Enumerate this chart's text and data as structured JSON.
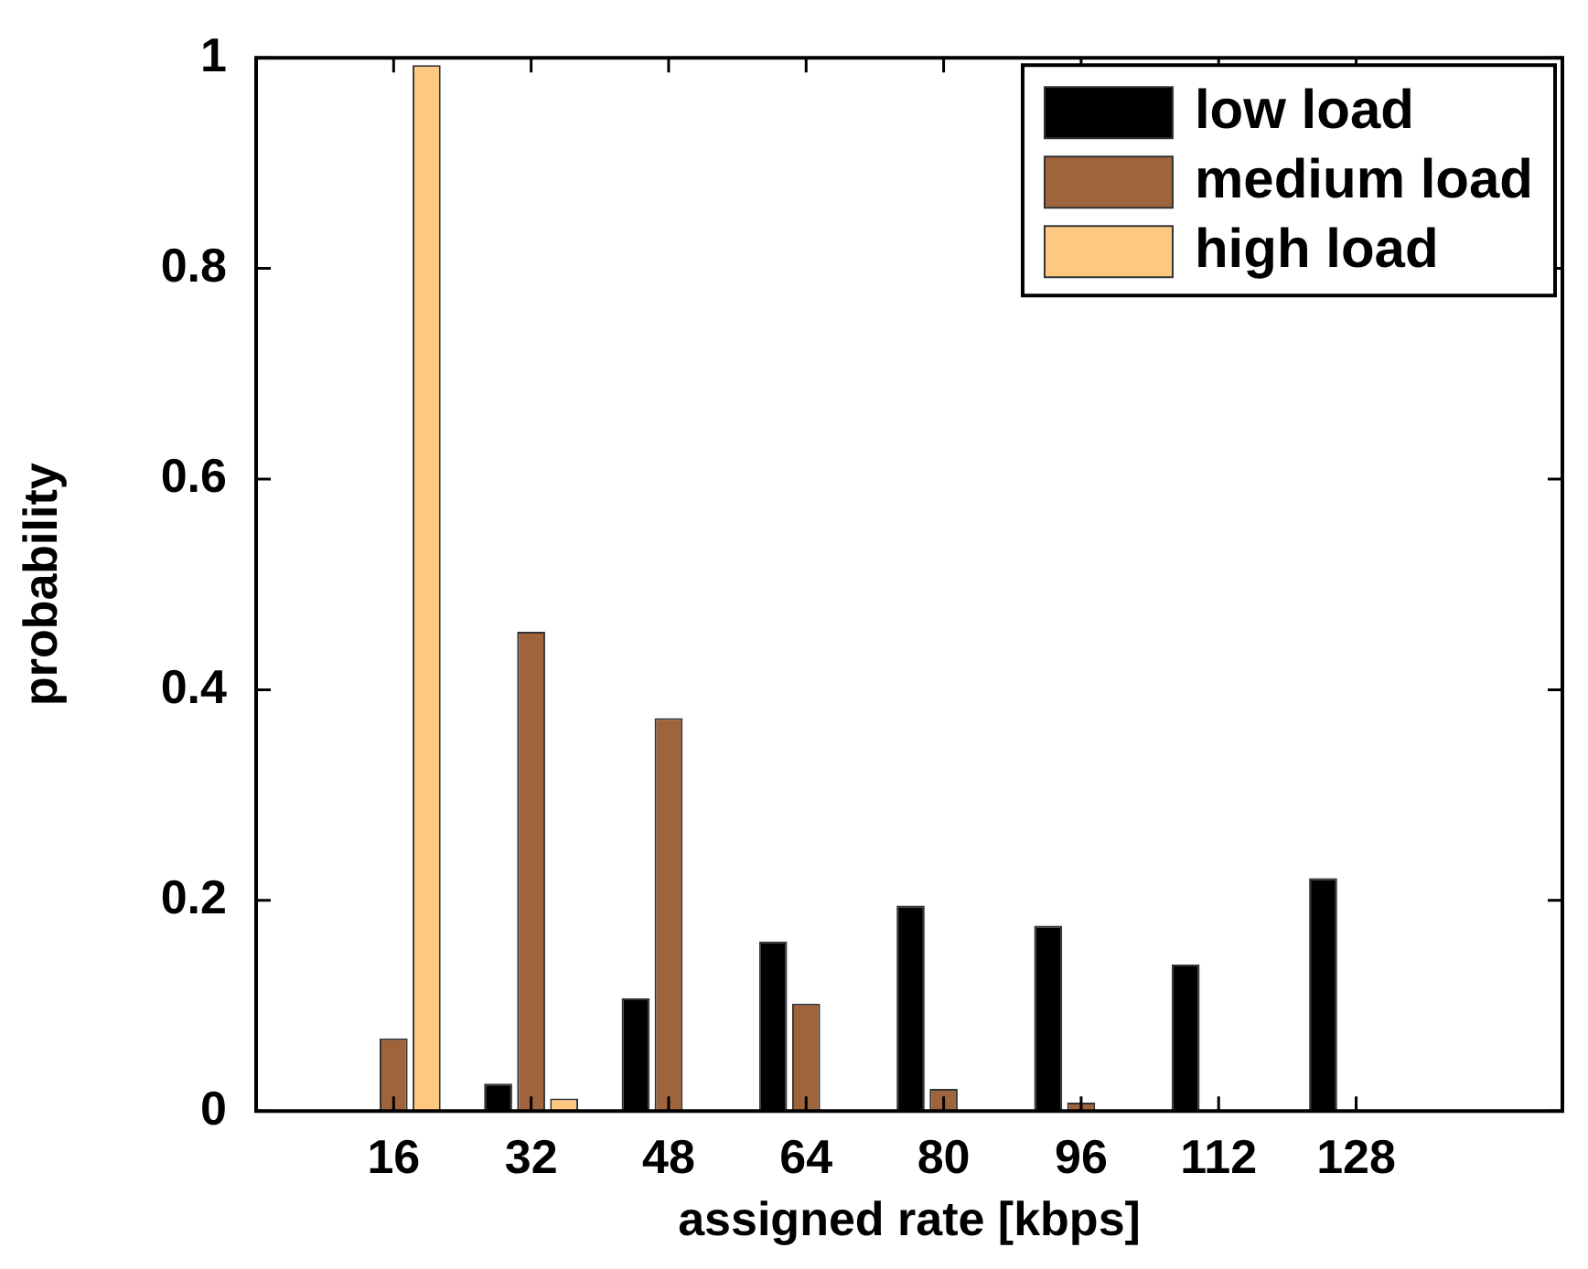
{
  "chart_data": {
    "type": "bar",
    "xlabel": "assigned rate [kbps]",
    "ylabel": "probability",
    "x": [
      16,
      32,
      48,
      64,
      80,
      96,
      112,
      128
    ],
    "xlim": [
      0,
      152
    ],
    "xticks": [
      16,
      32,
      48,
      64,
      80,
      96,
      112,
      128
    ],
    "ylim": [
      0,
      1
    ],
    "yticks": [
      0,
      0.2,
      0.4,
      0.6,
      0.8,
      1
    ],
    "series": [
      {
        "name": "low load",
        "color": "#000000",
        "values": [
          0,
          0.026,
          0.107,
          0.161,
          0.195,
          0.176,
          0.139,
          0.221
        ]
      },
      {
        "name": "medium load",
        "color": "#a0643c",
        "values": [
          0.069,
          0.455,
          0.373,
          0.102,
          0.021,
          0.008,
          0,
          0
        ]
      },
      {
        "name": "high load",
        "color": "#ffc880",
        "values": [
          0.993,
          0.012,
          0,
          0,
          0,
          0,
          0,
          0
        ]
      }
    ],
    "grid": false,
    "legend": "top right"
  }
}
